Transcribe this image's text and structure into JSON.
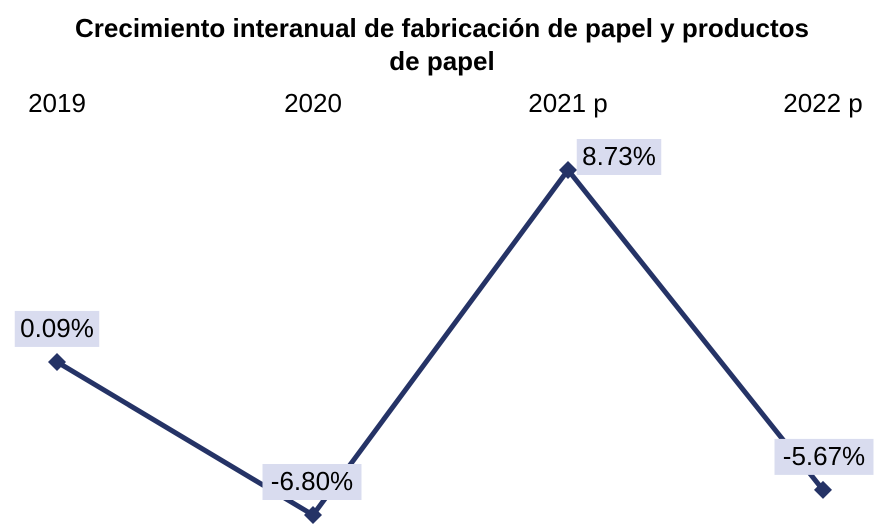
{
  "chart_data": {
    "type": "line",
    "title": "Crecimiento interanual de fabricación de papel y productos de papel",
    "categories": [
      "2019",
      "2020",
      "2021 p",
      "2022 p"
    ],
    "series": [
      {
        "name": null,
        "color": "#253366",
        "values": [
          0.09,
          -6.8,
          8.73,
          -5.67
        ],
        "value_labels": [
          "0.09%",
          "-6.80%",
          "8.73%",
          "-5.67%"
        ]
      }
    ],
    "label_background": "#d9dcef"
  }
}
